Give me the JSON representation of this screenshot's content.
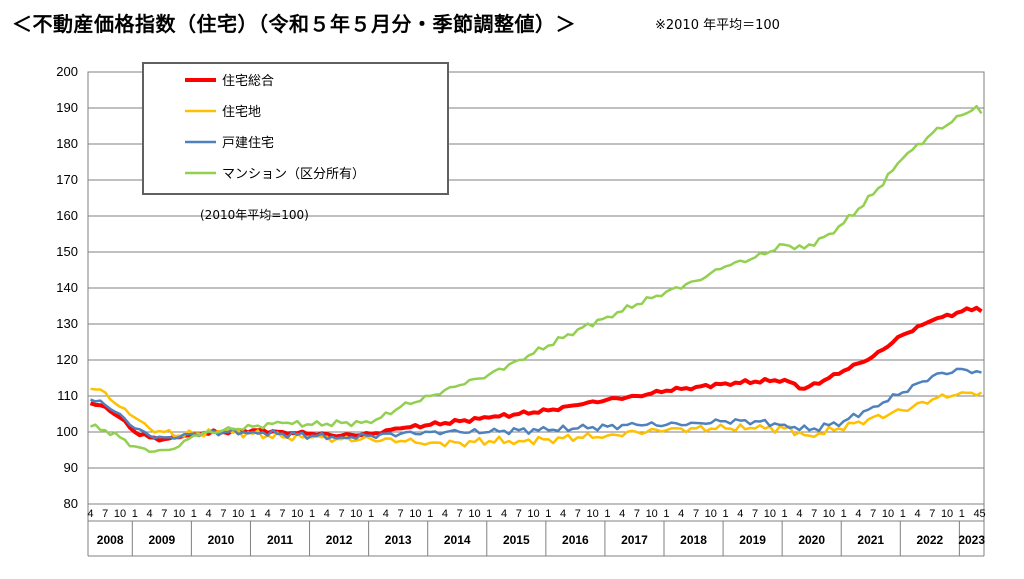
{
  "header": {
    "title": "＜不動産価格指数（住宅）（令和５年５月分・季節調整値）＞",
    "note": "※2010 年平均＝100"
  },
  "chart_data": {
    "type": "line",
    "note_inside": "(2010年平均=100)",
    "ylim": [
      80,
      200
    ],
    "yticks": [
      80,
      90,
      100,
      110,
      120,
      130,
      140,
      150,
      160,
      170,
      180,
      190,
      200
    ],
    "x_start": "2008-04",
    "x_end": "2023-05",
    "years": [
      "2008",
      "2009",
      "2010",
      "2011",
      "2012",
      "2013",
      "2014",
      "2015",
      "2016",
      "2017",
      "2018",
      "2019",
      "2020",
      "2021",
      "2022",
      "2023"
    ],
    "month_labels": [
      "1",
      "4",
      "7",
      "10"
    ],
    "grid": true,
    "legend_position": "top-left",
    "series": [
      {
        "name": "住宅総合",
        "color": "#ff0000",
        "anchors": [
          [
            "2008-04",
            108
          ],
          [
            "2008-07",
            107
          ],
          [
            "2008-10",
            104
          ],
          [
            "2009-01",
            100
          ],
          [
            "2009-04",
            98.5
          ],
          [
            "2009-07",
            98
          ],
          [
            "2009-10",
            98.5
          ],
          [
            "2010-01",
            99.5
          ],
          [
            "2010-07",
            100
          ],
          [
            "2011-01",
            100.5
          ],
          [
            "2011-07",
            100
          ],
          [
            "2012-01",
            99.5
          ],
          [
            "2012-07",
            99
          ],
          [
            "2013-01",
            99.5
          ],
          [
            "2013-07",
            101
          ],
          [
            "2014-01",
            102
          ],
          [
            "2014-07",
            103
          ],
          [
            "2015-01",
            104
          ],
          [
            "2015-07",
            105
          ],
          [
            "2016-01",
            106
          ],
          [
            "2016-07",
            107.5
          ],
          [
            "2017-01",
            109
          ],
          [
            "2017-07",
            110
          ],
          [
            "2018-01",
            111.5
          ],
          [
            "2018-07",
            112.5
          ],
          [
            "2019-01",
            113.5
          ],
          [
            "2019-07",
            114
          ],
          [
            "2020-01",
            114.5
          ],
          [
            "2020-05",
            112
          ],
          [
            "2020-10",
            115
          ],
          [
            "2021-01",
            117
          ],
          [
            "2021-07",
            121
          ],
          [
            "2022-01",
            127
          ],
          [
            "2022-07",
            131
          ],
          [
            "2023-01",
            133.5
          ],
          [
            "2023-04",
            134.5
          ],
          [
            "2023-05",
            133.5
          ]
        ]
      },
      {
        "name": "住宅地",
        "color": "#ffc000",
        "anchors": [
          [
            "2008-04",
            112
          ],
          [
            "2008-07",
            111
          ],
          [
            "2008-10",
            107
          ],
          [
            "2009-01",
            104
          ],
          [
            "2009-04",
            101
          ],
          [
            "2009-07",
            100
          ],
          [
            "2009-10",
            99
          ],
          [
            "2010-01",
            99.5
          ],
          [
            "2010-07",
            100
          ],
          [
            "2011-01",
            99.5
          ],
          [
            "2011-07",
            98.5
          ],
          [
            "2012-01",
            98.5
          ],
          [
            "2012-07",
            98
          ],
          [
            "2013-01",
            98
          ],
          [
            "2013-07",
            97.5
          ],
          [
            "2014-01",
            97
          ],
          [
            "2014-07",
            97
          ],
          [
            "2015-01",
            97.5
          ],
          [
            "2015-07",
            97.5
          ],
          [
            "2016-01",
            98
          ],
          [
            "2016-07",
            98.5
          ],
          [
            "2017-01",
            99
          ],
          [
            "2017-07",
            100
          ],
          [
            "2018-01",
            100.5
          ],
          [
            "2018-07",
            101
          ],
          [
            "2019-01",
            101
          ],
          [
            "2019-07",
            101
          ],
          [
            "2020-01",
            101
          ],
          [
            "2020-06",
            99
          ],
          [
            "2020-12",
            101
          ],
          [
            "2021-06",
            103.5
          ],
          [
            "2022-01",
            106
          ],
          [
            "2022-07",
            109
          ],
          [
            "2023-01",
            111
          ],
          [
            "2023-05",
            111
          ]
        ]
      },
      {
        "name": "戸建住宅",
        "color": "#4f81bd",
        "anchors": [
          [
            "2008-04",
            109
          ],
          [
            "2008-07",
            107.5
          ],
          [
            "2008-10",
            105
          ],
          [
            "2009-01",
            101
          ],
          [
            "2009-04",
            99
          ],
          [
            "2009-07",
            98.5
          ],
          [
            "2009-10",
            98.5
          ],
          [
            "2010-01",
            99.5
          ],
          [
            "2010-07",
            100
          ],
          [
            "2011-01",
            100
          ],
          [
            "2011-07",
            99.5
          ],
          [
            "2012-01",
            99
          ],
          [
            "2012-07",
            98.5
          ],
          [
            "2013-01",
            99
          ],
          [
            "2013-07",
            99.5
          ],
          [
            "2014-01",
            100
          ],
          [
            "2014-07",
            100
          ],
          [
            "2015-01",
            100
          ],
          [
            "2015-07",
            100.5
          ],
          [
            "2016-01",
            100.5
          ],
          [
            "2016-07",
            101
          ],
          [
            "2017-01",
            101.5
          ],
          [
            "2017-07",
            102
          ],
          [
            "2018-01",
            102
          ],
          [
            "2018-07",
            102.5
          ],
          [
            "2019-01",
            103
          ],
          [
            "2019-07",
            103
          ],
          [
            "2020-01",
            102
          ],
          [
            "2020-06",
            100.5
          ],
          [
            "2021-01",
            103
          ],
          [
            "2021-07",
            107
          ],
          [
            "2022-01",
            111
          ],
          [
            "2022-07",
            115.5
          ],
          [
            "2023-01",
            117.5
          ],
          [
            "2023-05",
            116.5
          ]
        ]
      },
      {
        "name": "マンション（区分所有）",
        "color": "#92d050",
        "anchors": [
          [
            "2008-04",
            101.5
          ],
          [
            "2008-07",
            100.5
          ],
          [
            "2008-10",
            98.5
          ],
          [
            "2009-01",
            96
          ],
          [
            "2009-04",
            94.5
          ],
          [
            "2009-07",
            95
          ],
          [
            "2009-10",
            96
          ],
          [
            "2010-01",
            99
          ],
          [
            "2010-07",
            100.5
          ],
          [
            "2011-01",
            101.5
          ],
          [
            "2011-07",
            102.5
          ],
          [
            "2012-01",
            102
          ],
          [
            "2012-07",
            102.5
          ],
          [
            "2013-01",
            102.5
          ],
          [
            "2013-07",
            107
          ],
          [
            "2014-01",
            110
          ],
          [
            "2014-07",
            113
          ],
          [
            "2015-01",
            116
          ],
          [
            "2015-07",
            120
          ],
          [
            "2016-01",
            124
          ],
          [
            "2016-07",
            128.5
          ],
          [
            "2017-01",
            132
          ],
          [
            "2017-07",
            135.5
          ],
          [
            "2018-01",
            139
          ],
          [
            "2018-07",
            142
          ],
          [
            "2019-01",
            146
          ],
          [
            "2019-07",
            148.5
          ],
          [
            "2020-01",
            152
          ],
          [
            "2020-05",
            151
          ],
          [
            "2020-10",
            155
          ],
          [
            "2021-01",
            158
          ],
          [
            "2021-07",
            166
          ],
          [
            "2022-01",
            176
          ],
          [
            "2022-07",
            183
          ],
          [
            "2023-01",
            188
          ],
          [
            "2023-04",
            190.5
          ],
          [
            "2023-05",
            188.5
          ]
        ]
      }
    ]
  }
}
